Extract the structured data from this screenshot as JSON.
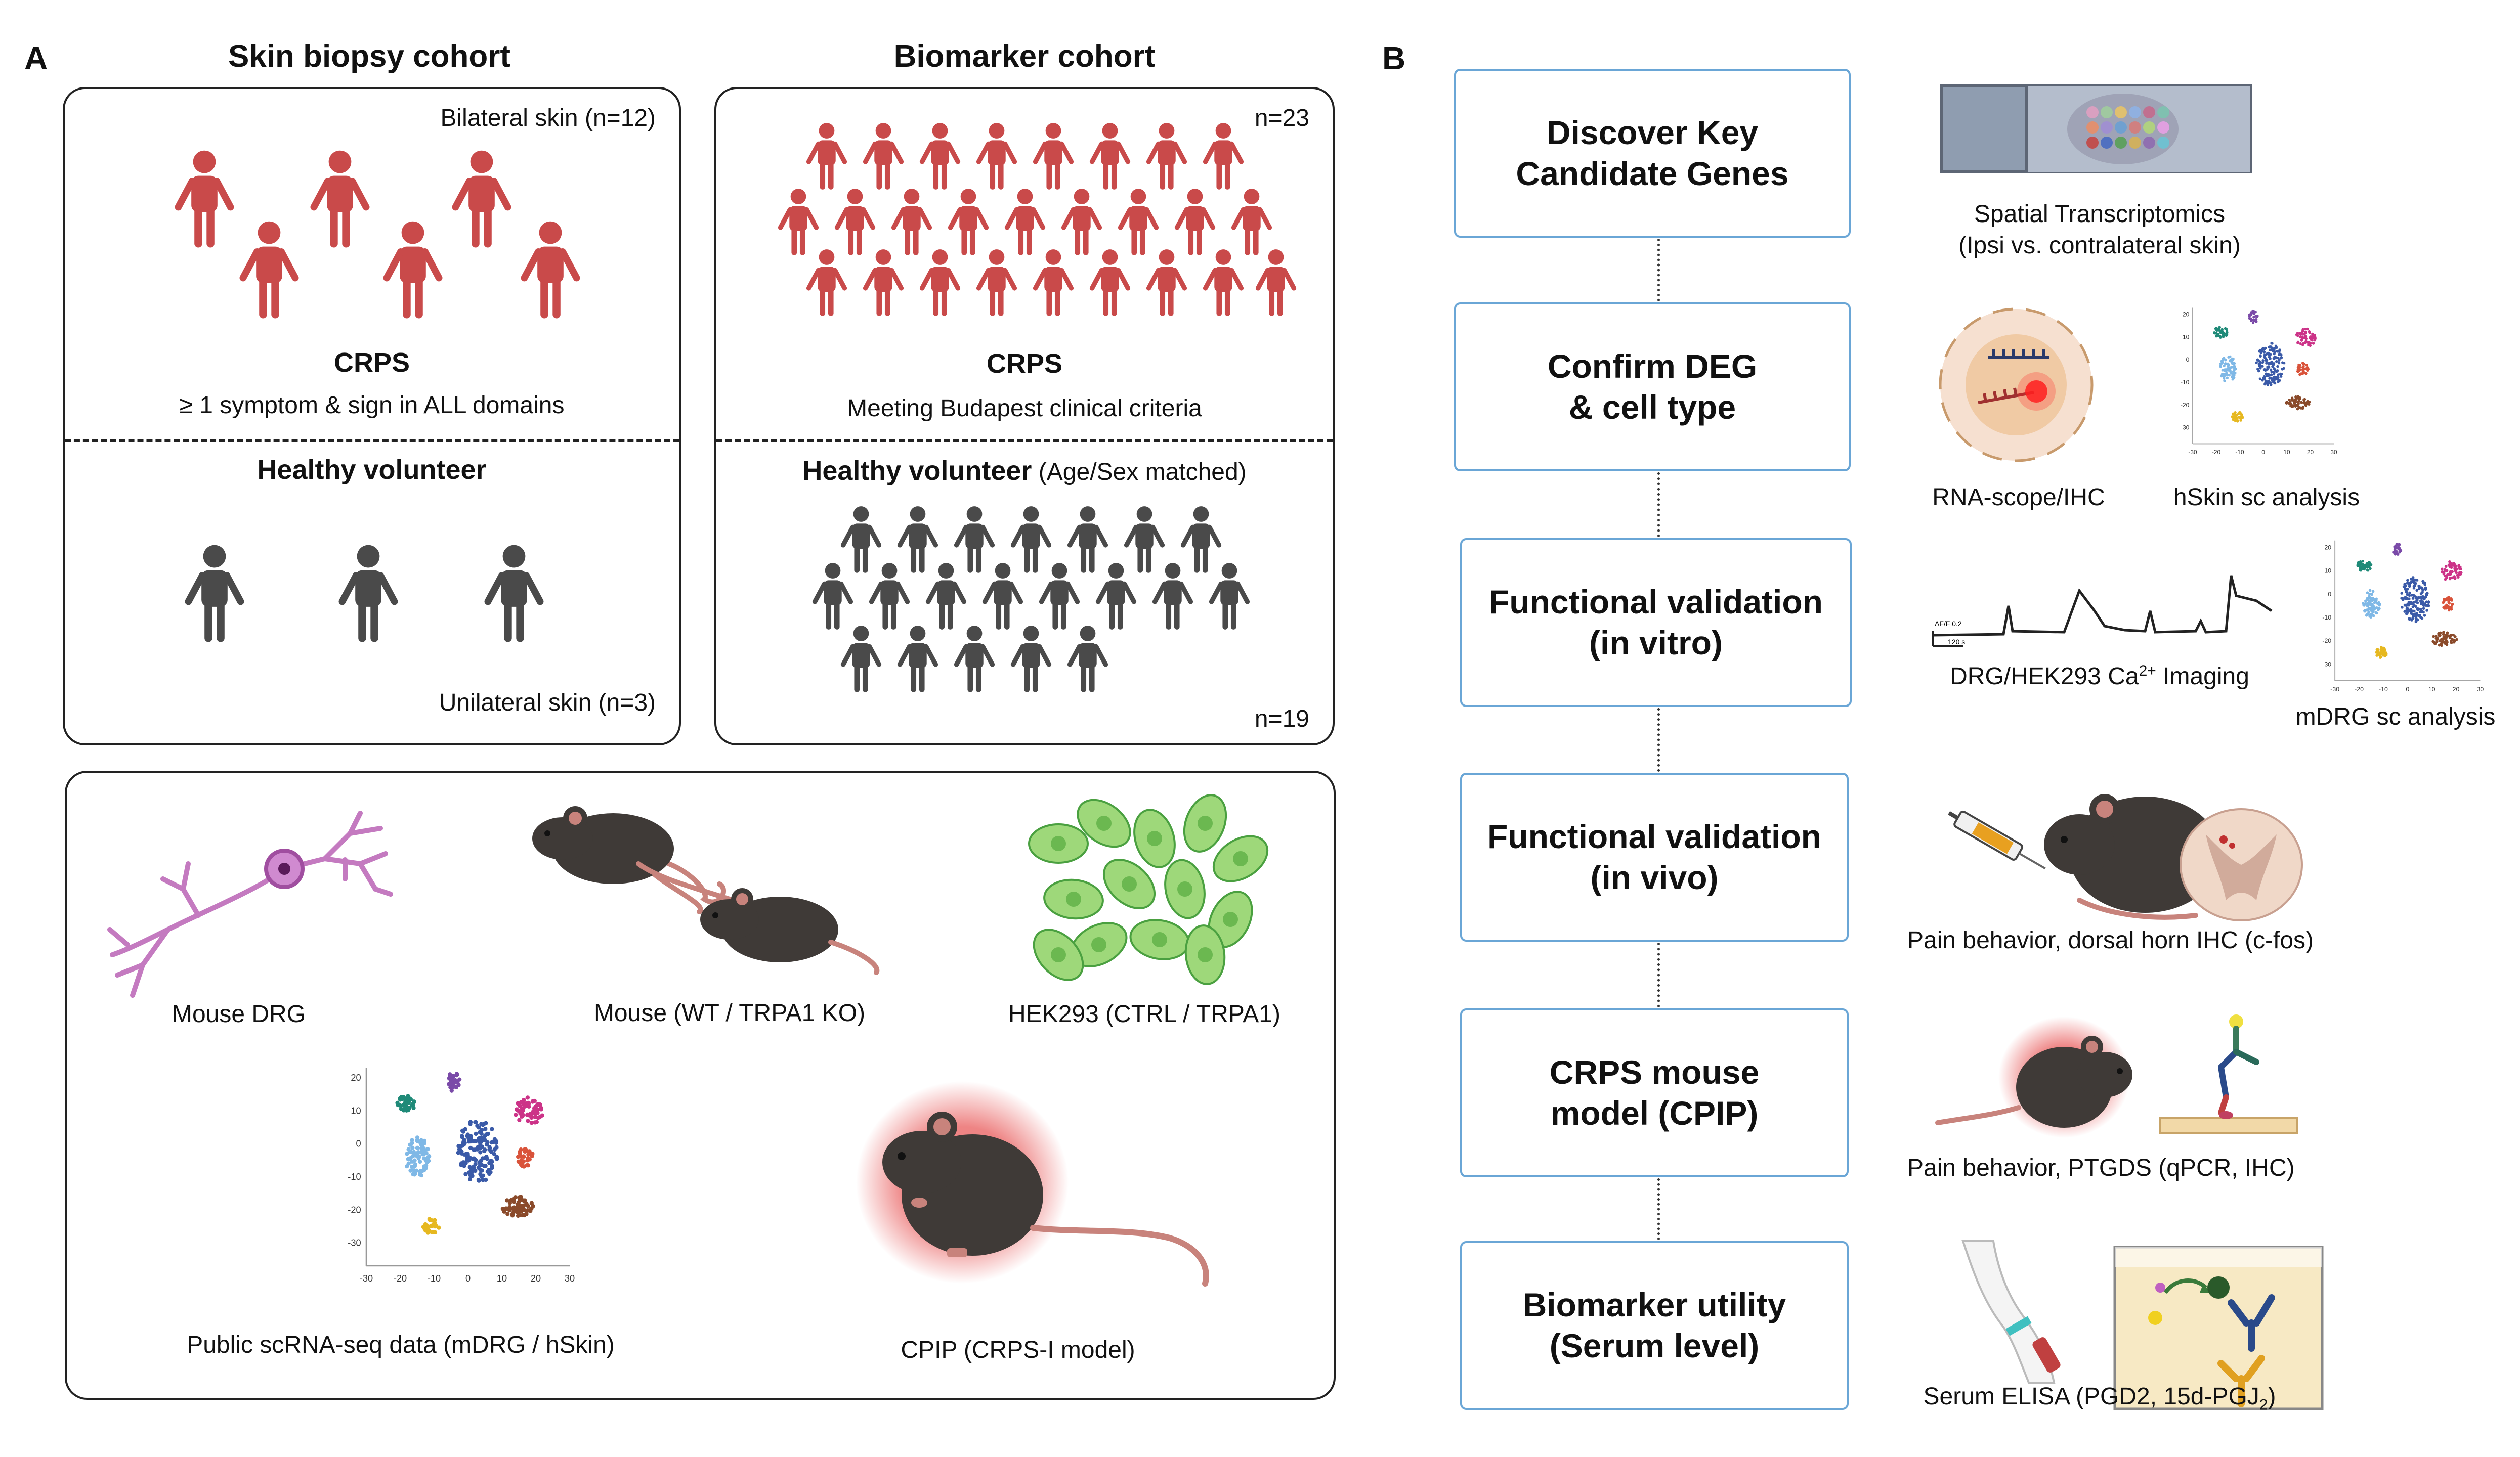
{
  "panel_a": {
    "letter": "A",
    "skin_cohort": {
      "title": "Skin biopsy cohort",
      "top_count": "Bilateral skin (n=12)",
      "crps_label": "CRPS",
      "crps_criteria": "≥ 1 symptom & sign in ALL domains",
      "healthy_label": "Healthy volunteer",
      "bottom_count": "Unilateral skin (n=3)"
    },
    "biomarker_cohort": {
      "title": "Biomarker cohort",
      "top_count": "n=23",
      "crps_label": "CRPS",
      "crps_criteria": "Meeting Budapest clinical criteria",
      "healthy_label": "Healthy volunteer",
      "healthy_note": "(Age/Sex matched)",
      "bottom_count": "n=19"
    },
    "models": {
      "mouse_drg": "Mouse DRG",
      "mouse": "Mouse (WT / TRPA1 KO)",
      "hek293": "HEK293 (CTRL / TRPA1)",
      "scrna": "Public scRNA-seq data (mDRG / hSkin)",
      "cpip": "CPIP (CRPS-I model)"
    },
    "tsne_ticks_x": [
      "-30",
      "-20",
      "-10",
      "0",
      "10",
      "20",
      "30"
    ],
    "tsne_ticks_y": [
      "20",
      "10",
      "0",
      "-10",
      "-20",
      "-30"
    ]
  },
  "panel_b": {
    "letter": "B",
    "steps": [
      {
        "line1": "Discover Key",
        "line2": "Candidate Genes"
      },
      {
        "line1": "Confirm DEG",
        "line2": "& cell type"
      },
      {
        "line1": "Functional validation",
        "line2": "(in vitro)"
      },
      {
        "line1": "Functional validation",
        "line2": "(in vivo)"
      },
      {
        "line1": "CRPS mouse",
        "line2": "model (CPIP)"
      },
      {
        "line1": "Biomarker utility",
        "line2": "(Serum level)"
      }
    ],
    "captions": {
      "spatial_1": "Spatial Transcriptomics",
      "spatial_2": "(Ipsi vs. contralateral skin)",
      "rnascope": "RNA-scope/IHC",
      "hskin": "hSkin sc analysis",
      "ca_prefix": "DRG/HEK293 Ca",
      "ca_sup": "2+",
      "ca_suffix": " Imaging",
      "mdrg": "mDRG sc analysis",
      "pain_dorsal": "Pain behavior, dorsal horn IHC (c-fos)",
      "pain_ptgds": "Pain behavior, PTGDS (qPCR, IHC)",
      "elisa_prefix": "Serum ELISA (PGD2, 15d-PGJ",
      "elisa_sub": "2",
      "elisa_suffix": ")"
    },
    "ca_trace_labels": {
      "y": "ΔF/F 0.2",
      "x": "120 s"
    }
  },
  "colors": {
    "crps_red": "#c94a4a",
    "healthy_gray": "#4a4a4a",
    "step_border": "#6aa6d6",
    "mouse_body": "#3f3a37",
    "tail": "#c8837c"
  }
}
